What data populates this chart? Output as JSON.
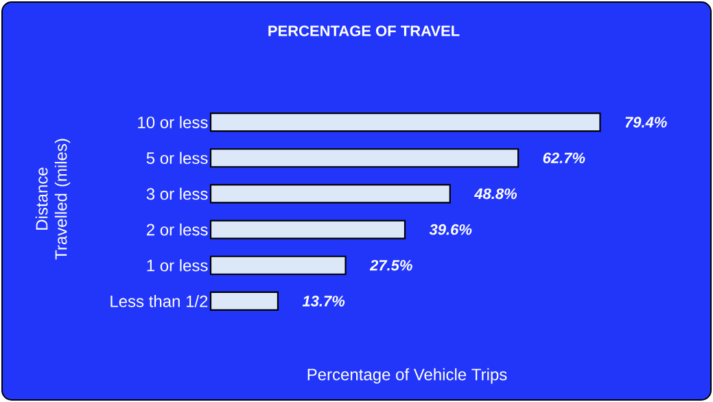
{
  "chart_data": {
    "type": "bar",
    "orientation": "horizontal",
    "title": "PERCENTAGE OF TRAVEL",
    "xlabel": "Percentage of Vehicle Trips",
    "ylabel": "Distance Travelled (miles)",
    "categories": [
      "10 or less",
      "5 or less",
      "3 or less",
      "2 or less",
      "1 or less",
      "Less than 1/2"
    ],
    "values": [
      79.4,
      62.7,
      48.8,
      39.6,
      27.5,
      13.7
    ],
    "value_labels": [
      "79.4%",
      "62.7%",
      "48.8%",
      "39.6%",
      "27.5%",
      "13.7%"
    ],
    "color": "#dce8f8",
    "tick_labels": "y"
  }
}
